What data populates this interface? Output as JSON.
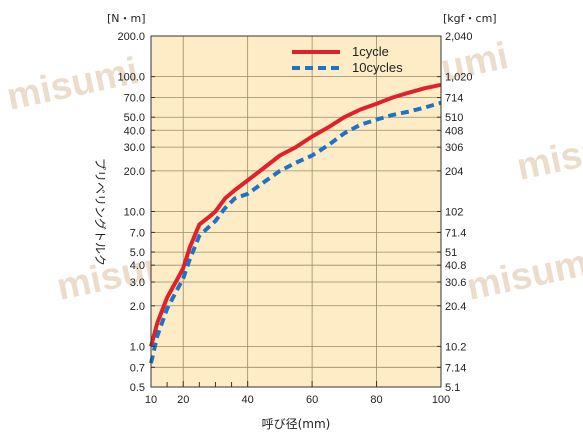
{
  "chart_data": {
    "type": "line",
    "x_axis": {
      "label": "呼び径(mm)",
      "scale": "linear",
      "range": [
        10,
        100
      ],
      "ticks": [
        "10",
        "20",
        "40",
        "60",
        "80",
        "100"
      ],
      "minor_ticks": [
        15,
        25,
        30,
        35
      ]
    },
    "y_axis_left": {
      "unit": "[N・m]",
      "label": "プリベリングトルク",
      "scale": "log",
      "range": [
        0.5,
        200
      ],
      "ticks": [
        {
          "v": 200,
          "t": "200.0"
        },
        {
          "v": 100,
          "t": "100.0"
        },
        {
          "v": 70,
          "t": "70.0"
        },
        {
          "v": 50,
          "t": "50.0"
        },
        {
          "v": 40,
          "t": "40.0"
        },
        {
          "v": 30,
          "t": "30.0"
        },
        {
          "v": 20,
          "t": "20.0"
        },
        {
          "v": 10,
          "t": "10.0"
        },
        {
          "v": 7,
          "t": "7.0"
        },
        {
          "v": 5,
          "t": "5.0"
        },
        {
          "v": 4,
          "t": "4.0"
        },
        {
          "v": 3,
          "t": "3.0"
        },
        {
          "v": 2,
          "t": "2.0"
        },
        {
          "v": 1,
          "t": "1.0"
        },
        {
          "v": 0.7,
          "t": "0.7"
        },
        {
          "v": 0.5,
          "t": "0.5"
        }
      ]
    },
    "y_axis_right": {
      "unit": "[kgf・cm]",
      "ticks": [
        {
          "v": 200,
          "t": "2,040"
        },
        {
          "v": 100,
          "t": "1,020"
        },
        {
          "v": 70,
          "t": "714"
        },
        {
          "v": 50,
          "t": "510"
        },
        {
          "v": 40,
          "t": "408"
        },
        {
          "v": 30,
          "t": "306"
        },
        {
          "v": 20,
          "t": "204"
        },
        {
          "v": 10,
          "t": "102"
        },
        {
          "v": 7,
          "t": "71.4"
        },
        {
          "v": 5,
          "t": "51"
        },
        {
          "v": 4,
          "t": "40.8"
        },
        {
          "v": 3,
          "t": "30.6"
        },
        {
          "v": 2,
          "t": "20.4"
        },
        {
          "v": 1,
          "t": "10.2"
        },
        {
          "v": 0.7,
          "t": "7.14"
        },
        {
          "v": 0.5,
          "t": "5.1"
        }
      ]
    },
    "grid": true,
    "legend_position": "top-right",
    "series": [
      {
        "name": "1cycle",
        "color": "#e0202a",
        "style": "solid",
        "x": [
          10,
          12,
          15,
          18,
          20,
          22,
          25,
          28,
          30,
          33,
          36,
          40,
          45,
          50,
          55,
          60,
          65,
          70,
          75,
          80,
          85,
          90,
          95,
          100
        ],
        "y": [
          1.0,
          1.5,
          2.3,
          3.1,
          3.8,
          5.4,
          8.0,
          9.1,
          10.0,
          12.5,
          14.4,
          17.0,
          21.0,
          26.0,
          30.0,
          36.0,
          42.0,
          50.0,
          57.0,
          63.0,
          70.0,
          76.0,
          82.0,
          87.0
        ]
      },
      {
        "name": "10cycles",
        "color": "#1d73c8",
        "style": "dashed",
        "x": [
          10,
          12,
          15,
          18,
          20,
          22,
          25,
          28,
          30,
          33,
          36,
          40,
          45,
          50,
          55,
          60,
          65,
          70,
          75,
          80,
          85,
          90,
          95,
          100
        ],
        "y": [
          0.75,
          1.2,
          1.9,
          2.6,
          3.2,
          4.4,
          6.6,
          7.7,
          8.5,
          10.6,
          12.5,
          13.5,
          16.5,
          20.0,
          23.0,
          26.0,
          31.0,
          38.0,
          44.0,
          48.0,
          52.0,
          55.0,
          59.0,
          64.0
        ]
      }
    ]
  },
  "watermark": "misumi",
  "colors": {
    "plot_bg": "#fdecc6",
    "grid": "#9b8a6a",
    "frame": "#333333"
  }
}
